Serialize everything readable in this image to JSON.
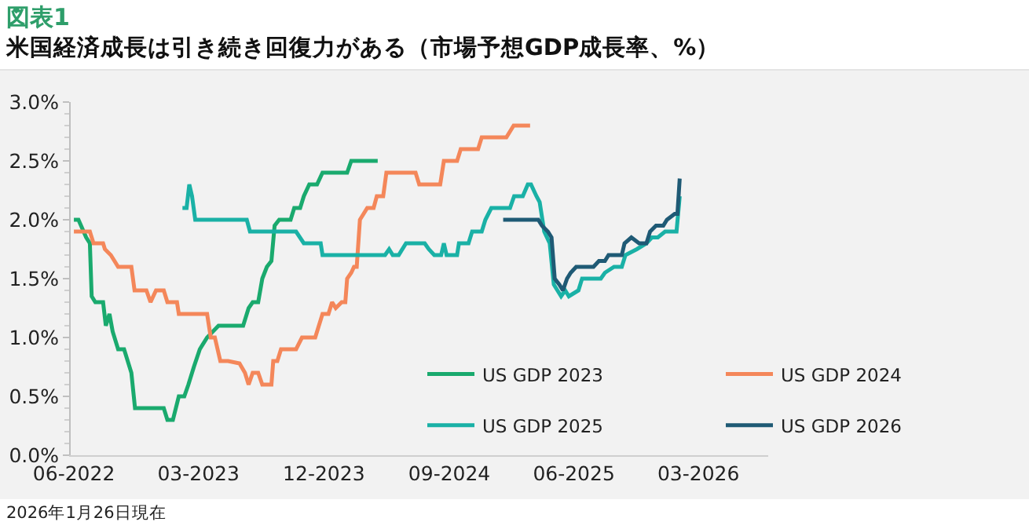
{
  "chart_data": {
    "type": "line",
    "title": "図表1",
    "subtitle": "米国経済成長は引き続き回復力がある（市場予想GDP成長率、%）",
    "annotations": [
      "2026年1月26日現在"
    ],
    "xlim": [
      "2022-05-25",
      "2026-08-01"
    ],
    "xticks": [
      {
        "value": "2022-06-01",
        "label": "06-2022"
      },
      {
        "value": "2023-03-01",
        "label": "03-2023"
      },
      {
        "value": "2023-12-01",
        "label": "12-2023"
      },
      {
        "value": "2024-09-01",
        "label": "09-2024"
      },
      {
        "value": "2025-06-01",
        "label": "06-2025"
      },
      {
        "value": "2026-03-01",
        "label": "03-2026"
      }
    ],
    "ylim": [
      0,
      3
    ],
    "yticks": [
      {
        "value": 0,
        "label": "0.0%"
      },
      {
        "value": 0.5,
        "label": "0.5%"
      },
      {
        "value": 1,
        "label": "1.0%"
      },
      {
        "value": 1.5,
        "label": "1.5%"
      },
      {
        "value": 2,
        "label": "2.0%"
      },
      {
        "value": 2.5,
        "label": "2.5%"
      },
      {
        "value": 3,
        "label": "3.0%"
      }
    ],
    "grid": false,
    "legend": "bottom right",
    "marker": "none",
    "line_style": "solid",
    "series": [
      {
        "name": "US GDP 2023",
        "color": "#1aaa6e",
        "x": [
          "2022-06-01",
          "2022-06-11",
          "2022-06-28",
          "2022-07-06",
          "2022-07-10",
          "2022-07-18",
          "2022-08-04",
          "2022-08-10",
          "2022-08-18",
          "2022-08-25",
          "2022-09-06",
          "2022-09-19",
          "2022-10-05",
          "2022-10-13",
          "2022-12-15",
          "2022-12-23",
          "2023-01-04",
          "2023-01-17",
          "2023-01-29",
          "2023-02-07",
          "2023-02-19",
          "2023-03-04",
          "2023-03-20",
          "2023-04-14",
          "2023-06-07",
          "2023-06-19",
          "2023-06-28",
          "2023-07-10",
          "2023-07-19",
          "2023-07-29",
          "2023-08-08",
          "2023-08-15",
          "2023-08-25",
          "2023-09-19",
          "2023-09-27",
          "2023-10-10",
          "2023-10-18",
          "2023-10-30",
          "2023-11-16",
          "2023-11-28",
          "2024-01-21",
          "2024-01-30",
          "2024-03-28"
        ],
        "values": [
          2.0,
          2.0,
          1.85,
          1.8,
          1.35,
          1.3,
          1.3,
          1.1,
          1.2,
          1.05,
          0.9,
          0.9,
          0.7,
          0.4,
          0.4,
          0.3,
          0.3,
          0.5,
          0.5,
          0.6,
          0.75,
          0.9,
          1.0,
          1.1,
          1.1,
          1.25,
          1.3,
          1.3,
          1.5,
          1.6,
          1.65,
          1.95,
          2.0,
          2.0,
          2.1,
          2.1,
          2.2,
          2.3,
          2.3,
          2.4,
          2.4,
          2.5,
          2.5
        ]
      },
      {
        "name": "US GDP 2024",
        "color": "#f4875a",
        "x": [
          "2022-06-01",
          "2022-07-06",
          "2022-07-14",
          "2022-08-04",
          "2022-08-08",
          "2022-08-21",
          "2022-08-29",
          "2022-09-06",
          "2022-10-05",
          "2022-10-12",
          "2022-11-07",
          "2022-11-16",
          "2022-11-28",
          "2022-12-15",
          "2022-12-23",
          "2023-01-13",
          "2023-01-17",
          "2023-03-20",
          "2023-03-28",
          "2023-04-06",
          "2023-04-18",
          "2023-05-05",
          "2023-05-30",
          "2023-06-11",
          "2023-06-19",
          "2023-06-28",
          "2023-07-10",
          "2023-07-19",
          "2023-08-08",
          "2023-08-12",
          "2023-08-21",
          "2023-08-29",
          "2023-10-01",
          "2023-10-14",
          "2023-11-12",
          "2023-11-28",
          "2023-12-11",
          "2023-12-19",
          "2023-12-27",
          "2024-01-09",
          "2024-01-17",
          "2024-01-21",
          "2024-01-30",
          "2024-02-05",
          "2024-02-11",
          "2024-02-18",
          "2024-02-26",
          "2024-03-05",
          "2024-03-19",
          "2024-03-26",
          "2024-04-09",
          "2024-04-16",
          "2024-05-08",
          "2024-06-10",
          "2024-06-19",
          "2024-06-27",
          "2024-08-12",
          "2024-08-20",
          "2024-09-18",
          "2024-09-26",
          "2024-11-03",
          "2024-11-11",
          "2025-01-04",
          "2025-01-20",
          "2025-02-25"
        ],
        "values": [
          1.9,
          1.9,
          1.8,
          1.8,
          1.75,
          1.7,
          1.65,
          1.6,
          1.6,
          1.4,
          1.4,
          1.3,
          1.4,
          1.4,
          1.3,
          1.3,
          1.2,
          1.2,
          1.0,
          1.0,
          0.8,
          0.8,
          0.78,
          0.7,
          0.6,
          0.7,
          0.7,
          0.6,
          0.6,
          0.8,
          0.8,
          0.9,
          0.9,
          1.0,
          1.0,
          1.2,
          1.2,
          1.3,
          1.25,
          1.3,
          1.3,
          1.5,
          1.55,
          1.6,
          1.6,
          2.0,
          2.05,
          2.1,
          2.1,
          2.2,
          2.2,
          2.4,
          2.4,
          2.4,
          2.4,
          2.3,
          2.3,
          2.5,
          2.5,
          2.6,
          2.6,
          2.7,
          2.7,
          2.8,
          2.8
        ]
      },
      {
        "name": "US GDP 2025",
        "color": "#1ab1a6",
        "x": [
          "2023-01-25",
          "2023-02-03",
          "2023-02-09",
          "2023-02-15",
          "2023-02-22",
          "2023-06-15",
          "2023-06-22",
          "2023-10-01",
          "2023-10-18",
          "2023-11-24",
          "2023-11-28",
          "2024-04-13",
          "2024-04-22",
          "2024-04-30",
          "2024-05-13",
          "2024-05-29",
          "2024-07-09",
          "2024-07-18",
          "2024-07-30",
          "2024-08-14",
          "2024-08-20",
          "2024-08-26",
          "2024-09-18",
          "2024-09-22",
          "2024-10-13",
          "2024-10-21",
          "2024-11-11",
          "2024-11-19",
          "2024-12-02",
          "2025-01-12",
          "2025-01-21",
          "2025-02-09",
          "2025-02-20",
          "2025-02-27",
          "2025-03-11",
          "2025-03-18",
          "2025-03-28",
          "2025-04-09",
          "2025-04-18",
          "2025-04-26",
          "2025-05-04",
          "2025-05-13",
          "2025-05-21",
          "2025-06-11",
          "2025-06-19",
          "2025-07-30",
          "2025-08-08",
          "2025-08-28",
          "2025-09-14",
          "2025-09-22",
          "2025-10-17",
          "2025-11-07",
          "2025-11-19",
          "2025-12-02",
          "2025-12-18",
          "2026-01-12",
          "2026-01-19"
        ],
        "values": [
          2.1,
          2.1,
          2.3,
          2.2,
          2.0,
          2.0,
          1.9,
          1.9,
          1.8,
          1.8,
          1.7,
          1.7,
          1.75,
          1.7,
          1.7,
          1.8,
          1.8,
          1.75,
          1.7,
          1.7,
          1.8,
          1.7,
          1.7,
          1.8,
          1.8,
          1.9,
          1.9,
          2.0,
          2.1,
          2.1,
          2.2,
          2.2,
          2.3,
          2.3,
          2.2,
          2.15,
          1.9,
          1.8,
          1.45,
          1.4,
          1.35,
          1.4,
          1.35,
          1.4,
          1.5,
          1.5,
          1.55,
          1.6,
          1.6,
          1.7,
          1.75,
          1.8,
          1.85,
          1.85,
          1.9,
          1.9,
          2.2
        ]
      },
      {
        "name": "US GDP 2026",
        "color": "#1f5a75",
        "x": [
          "2024-12-28",
          "2025-03-15",
          "2025-03-23",
          "2025-04-05",
          "2025-04-13",
          "2025-04-20",
          "2025-04-30",
          "2025-05-08",
          "2025-05-17",
          "2025-05-25",
          "2025-06-06",
          "2025-07-14",
          "2025-07-26",
          "2025-08-08",
          "2025-08-16",
          "2025-09-14",
          "2025-09-20",
          "2025-10-05",
          "2025-10-22",
          "2025-11-07",
          "2025-11-15",
          "2025-11-28",
          "2025-12-14",
          "2025-12-22",
          "2026-01-08",
          "2026-01-14",
          "2026-01-19"
        ],
        "values": [
          2.0,
          2.0,
          1.95,
          1.9,
          1.85,
          1.5,
          1.45,
          1.4,
          1.5,
          1.55,
          1.6,
          1.6,
          1.65,
          1.65,
          1.7,
          1.7,
          1.8,
          1.85,
          1.8,
          1.8,
          1.9,
          1.95,
          1.95,
          2.0,
          2.05,
          2.05,
          2.35
        ]
      }
    ]
  }
}
